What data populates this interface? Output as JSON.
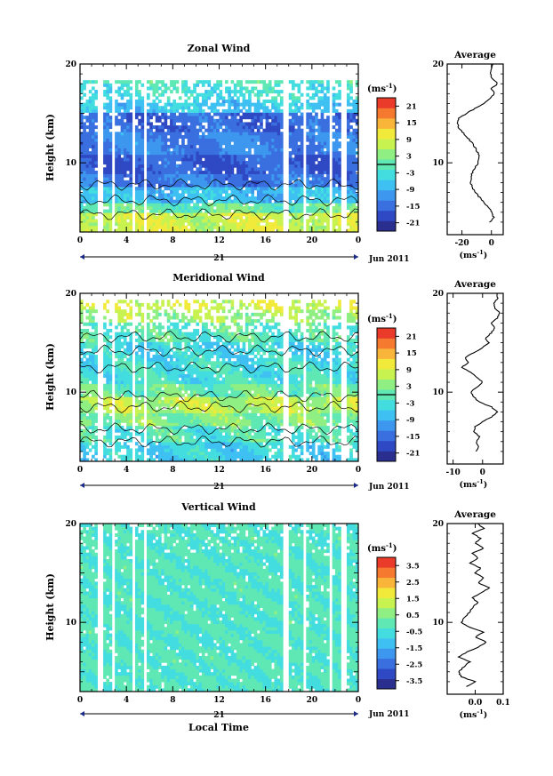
{
  "figure": {
    "xlabel": "Local Time",
    "date_label": "Jun 2011",
    "day_label": "21",
    "unit_label": "(ms",
    "unit_exp": "-1",
    "unit_close": ")"
  },
  "colormap": [
    "#2a2f8f",
    "#2f49c4",
    "#3a6fe0",
    "#3d97ee",
    "#3ec1f2",
    "#43dde0",
    "#5fe8b4",
    "#8fef82",
    "#c8f250",
    "#f2ea3a",
    "#f8b53a",
    "#f57a2f",
    "#ea3b2a"
  ],
  "chart_data": [
    {
      "type": "heatmap",
      "title": "Zonal Wind",
      "xlabel": "",
      "ylabel": "Height (km)",
      "xlim": [
        0,
        24
      ],
      "ylim": [
        3,
        20
      ],
      "x_ticks": [
        "0",
        "4",
        "8",
        "12",
        "16",
        "20",
        "0"
      ],
      "y_ticks": [
        "10",
        "20"
      ],
      "colorbar": {
        "unit": "(ms-1)",
        "ticks": [
          "21",
          "15",
          "9",
          "3",
          "-3",
          "-9",
          "-15",
          "-21"
        ],
        "range": [
          -24,
          24
        ]
      },
      "profile": {
        "title": "Average",
        "xlabel": "(ms-1)",
        "xlim": [
          -30,
          8
        ],
        "x_ticks": [
          "-20",
          "0"
        ],
        "y_ticks": [
          "10",
          "20"
        ],
        "points": [
          [
            -1,
            4
          ],
          [
            1.5,
            4.5
          ],
          [
            0,
            5
          ],
          [
            -2,
            5.5
          ],
          [
            -5,
            6
          ],
          [
            -8,
            6.5
          ],
          [
            -11,
            7
          ],
          [
            -13,
            7.5
          ],
          [
            -14,
            8
          ],
          [
            -14,
            8.5
          ],
          [
            -13,
            9
          ],
          [
            -11,
            9.5
          ],
          [
            -9,
            10
          ],
          [
            -8,
            10.5
          ],
          [
            -9,
            11
          ],
          [
            -11,
            11.5
          ],
          [
            -13,
            12
          ],
          [
            -16,
            12.5
          ],
          [
            -19,
            13
          ],
          [
            -22,
            13.5
          ],
          [
            -23,
            14
          ],
          [
            -22,
            14.5
          ],
          [
            -17,
            15
          ],
          [
            -11,
            15.5
          ],
          [
            -5,
            16
          ],
          [
            -1,
            16.5
          ],
          [
            2,
            17
          ],
          [
            0,
            17.5
          ],
          [
            4,
            18
          ],
          [
            1,
            18.5
          ],
          [
            -1,
            19
          ],
          [
            0,
            19.5
          ],
          [
            1,
            20
          ]
        ]
      }
    },
    {
      "type": "heatmap",
      "title": "Meridional Wind",
      "xlabel": "",
      "ylabel": "Height (km)",
      "xlim": [
        0,
        24
      ],
      "ylim": [
        3,
        20
      ],
      "x_ticks": [
        "0",
        "4",
        "8",
        "12",
        "16",
        "20",
        "0"
      ],
      "y_ticks": [
        "10",
        "20"
      ],
      "colorbar": {
        "unit": "(ms-1)",
        "ticks": [
          "21",
          "15",
          "9",
          "3",
          "-3",
          "-9",
          "-15",
          "-21"
        ],
        "range": [
          -24,
          24
        ]
      },
      "profile": {
        "title": "Average",
        "xlabel": "(ms-1)",
        "xlim": [
          -12,
          7
        ],
        "x_ticks": [
          "-10",
          "0"
        ],
        "y_ticks": [
          "10",
          "20"
        ],
        "points": [
          [
            -2,
            4
          ],
          [
            -1.5,
            4.5
          ],
          [
            -2,
            5
          ],
          [
            -1,
            5.5
          ],
          [
            -3,
            6
          ],
          [
            -2.5,
            6.5
          ],
          [
            0,
            7
          ],
          [
            3,
            7.5
          ],
          [
            5,
            8
          ],
          [
            3,
            8.5
          ],
          [
            -1,
            9
          ],
          [
            -3,
            9.5
          ],
          [
            -4,
            10
          ],
          [
            -2,
            10.5
          ],
          [
            0,
            11
          ],
          [
            -2,
            11.5
          ],
          [
            -4,
            12
          ],
          [
            -7,
            12.5
          ],
          [
            -5,
            13
          ],
          [
            -6,
            13.5
          ],
          [
            -3,
            14
          ],
          [
            0,
            14.5
          ],
          [
            2,
            15
          ],
          [
            1,
            15.5
          ],
          [
            3,
            16
          ],
          [
            4,
            16.5
          ],
          [
            3,
            17
          ],
          [
            5,
            17.5
          ],
          [
            6,
            18
          ],
          [
            4,
            18.5
          ],
          [
            4,
            19
          ],
          [
            5,
            19.5
          ],
          [
            5,
            20
          ]
        ]
      }
    },
    {
      "type": "heatmap",
      "title": "Vertical Wind",
      "xlabel": "Local Time",
      "ylabel": "Height (km)",
      "xlim": [
        0,
        24
      ],
      "ylim": [
        3,
        20
      ],
      "x_ticks": [
        "0",
        "4",
        "8",
        "12",
        "16",
        "20",
        "0"
      ],
      "y_ticks": [
        "10",
        "20"
      ],
      "colorbar": {
        "unit": "(ms-1)",
        "ticks": [
          "3.5",
          "2.5",
          "1.5",
          "0.5",
          "-0.5",
          "-1.5",
          "-2.5",
          "-3.5"
        ],
        "range": [
          -4,
          4
        ]
      },
      "profile": {
        "title": "Average",
        "xlabel": "(ms-1)",
        "xlim": [
          -0.1,
          0.1
        ],
        "x_ticks": [
          "0.0",
          "0.1"
        ],
        "y_ticks": [
          "10",
          "20"
        ],
        "points": [
          [
            -0.03,
            3.5
          ],
          [
            0.0,
            4
          ],
          [
            -0.05,
            4.5
          ],
          [
            -0.06,
            5
          ],
          [
            -0.04,
            5.5
          ],
          [
            -0.02,
            6
          ],
          [
            -0.06,
            6.5
          ],
          [
            -0.03,
            7
          ],
          [
            0.01,
            7.5
          ],
          [
            0.04,
            8
          ],
          [
            0.0,
            8.5
          ],
          [
            0.03,
            9
          ],
          [
            -0.02,
            9.5
          ],
          [
            -0.05,
            10
          ],
          [
            -0.04,
            10.5
          ],
          [
            -0.02,
            11
          ],
          [
            -0.01,
            11.5
          ],
          [
            0.01,
            12
          ],
          [
            -0.01,
            12.5
          ],
          [
            0.02,
            13
          ],
          [
            0.05,
            13.5
          ],
          [
            0.01,
            14
          ],
          [
            0.03,
            14.5
          ],
          [
            0.0,
            15
          ],
          [
            0.02,
            15.5
          ],
          [
            -0.02,
            16
          ],
          [
            0.01,
            16.5
          ],
          [
            -0.01,
            17
          ],
          [
            0.03,
            17.5
          ],
          [
            0.0,
            18
          ],
          [
            0.02,
            18.5
          ],
          [
            -0.01,
            19
          ],
          [
            0.03,
            19.5
          ],
          [
            0.01,
            20
          ]
        ]
      }
    }
  ]
}
